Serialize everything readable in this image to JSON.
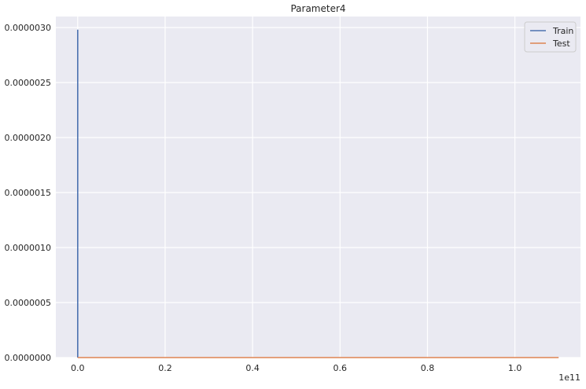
{
  "chart_data": {
    "type": "line",
    "title": "Parameter4",
    "xlabel": "",
    "ylabel": "",
    "x_offset_label": "1e11",
    "xlim": [
      -0.05,
      1.15
    ],
    "ylim": [
      0,
      3.1e-06
    ],
    "x_ticks": [
      0.0,
      0.2,
      0.4,
      0.6,
      0.8,
      1.0
    ],
    "x_tick_labels": [
      "0.0",
      "0.2",
      "0.4",
      "0.6",
      "0.8",
      "1.0"
    ],
    "y_ticks": [
      0,
      5e-07,
      1e-06,
      1.5e-06,
      2e-06,
      2.5e-06,
      3e-06
    ],
    "y_tick_labels": [
      "0.0000000",
      "0.0000005",
      "0.0000010",
      "0.0000015",
      "0.0000020",
      "0.0000025",
      "0.0000030"
    ],
    "grid": true,
    "legend_position": "top-right",
    "series": [
      {
        "name": "Train",
        "color": "#4c72b0",
        "x": [
          0,
          0,
          1e-07,
          2e-07
        ],
        "y": [
          0,
          2.98e-06,
          2.98e-06,
          0
        ]
      },
      {
        "name": "Test",
        "color": "#dd8452",
        "x": [
          0,
          0.5,
          1.1
        ],
        "y": [
          0,
          0,
          0
        ]
      }
    ]
  }
}
